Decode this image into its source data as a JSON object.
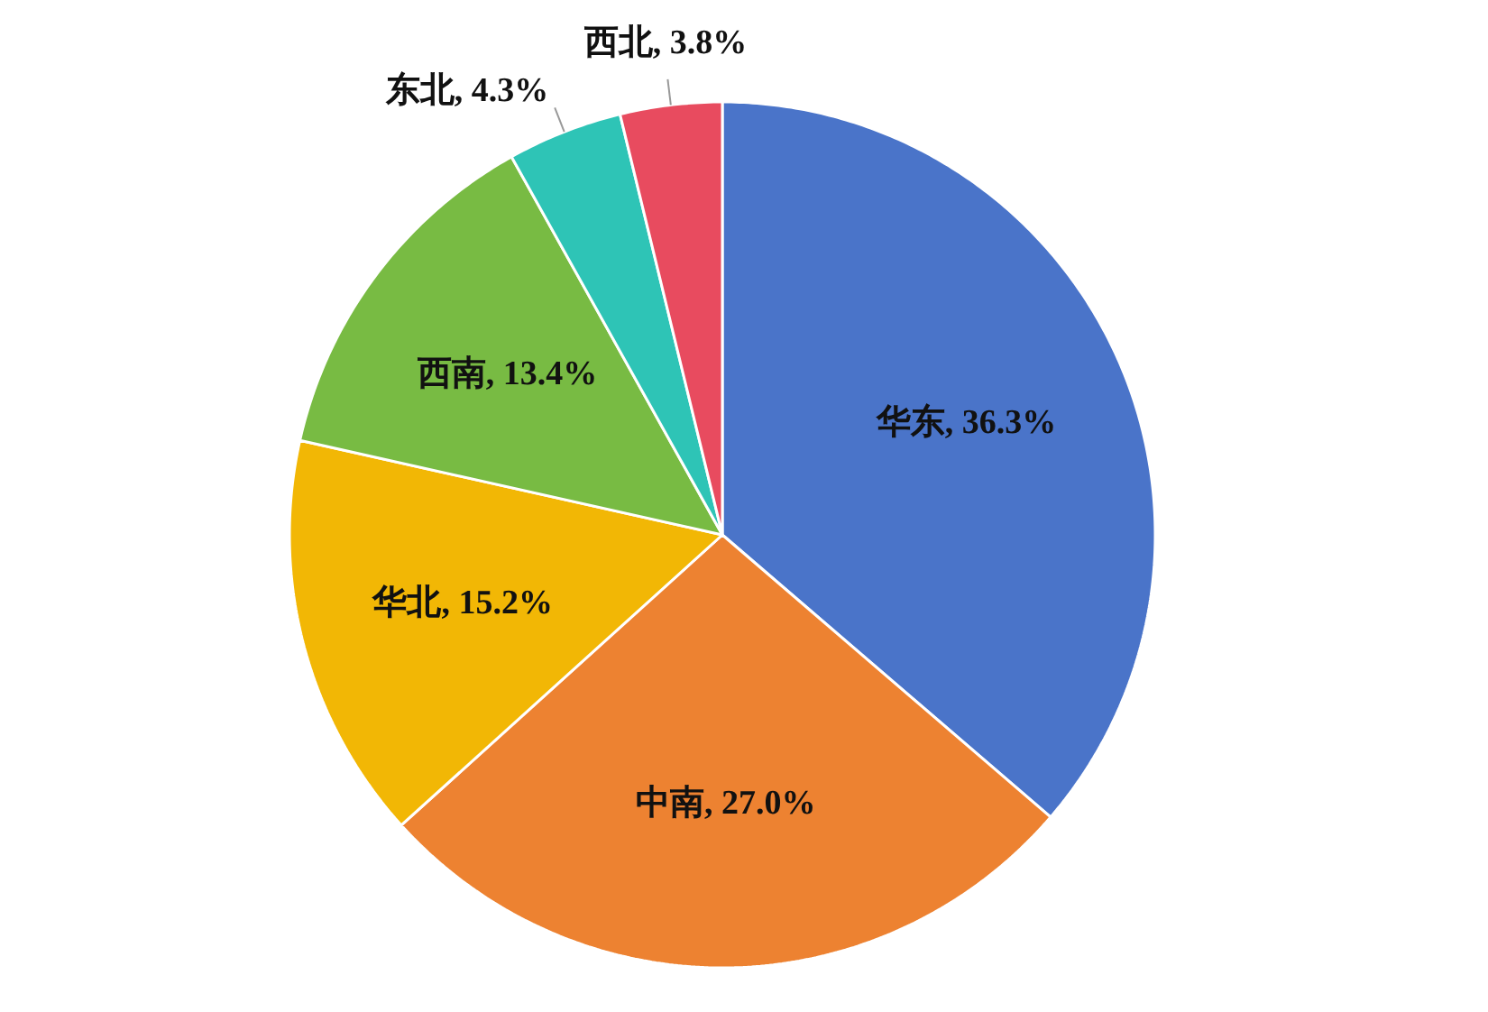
{
  "chart_data": {
    "type": "pie",
    "categories": [
      "华东",
      "中南",
      "华北",
      "西南",
      "东北",
      "西北"
    ],
    "values": [
      36.3,
      27.0,
      15.2,
      13.4,
      4.3,
      3.8
    ],
    "value_labels": [
      "36.3%",
      "27.0%",
      "15.2%",
      "13.4%",
      "4.3%",
      "3.8%"
    ],
    "colors": [
      "#4a74c9",
      "#ed8231",
      "#f2b705",
      "#78bb43",
      "#2ec4b6",
      "#e84b5f"
    ]
  }
}
